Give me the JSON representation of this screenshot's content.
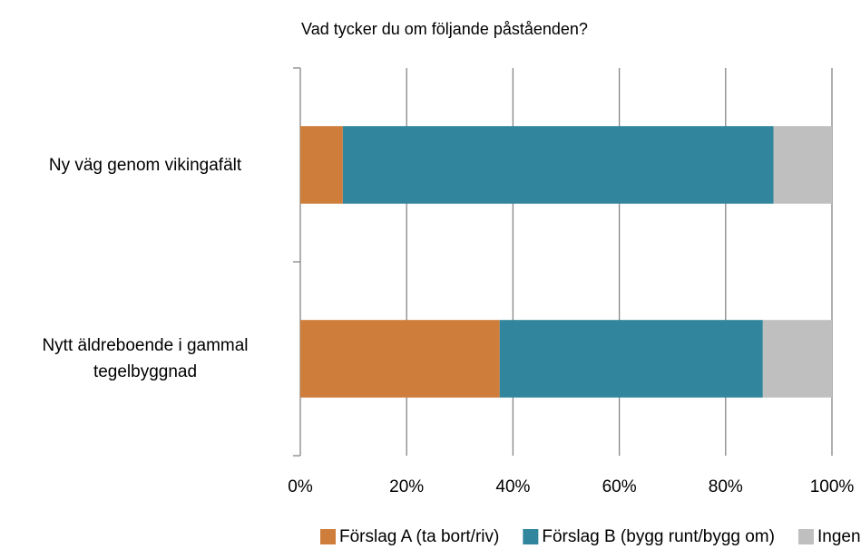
{
  "chart_data": {
    "type": "stacked_barh",
    "title": "Vad tycker du om följande påståenden?",
    "categories": [
      "Ny väg genom vikingafält",
      "Nytt äldreboende i gammal tegelbyggnad"
    ],
    "series": [
      {
        "name": "Förslag A (ta bort/riv)",
        "color": "#cf7d3a",
        "values": [
          8,
          37.5
        ]
      },
      {
        "name": "Förslag B (bygg runt/bygg om)",
        "color": "#31859c",
        "values": [
          81,
          49.5
        ]
      },
      {
        "name": "Ingen åsikt",
        "color": "#bfbfbf",
        "values": [
          11,
          13
        ]
      }
    ],
    "xlim": [
      0,
      100
    ],
    "xticks": [
      {
        "value": 0,
        "label": "0%"
      },
      {
        "value": 20,
        "label": "20%"
      },
      {
        "value": 40,
        "label": "40%"
      },
      {
        "value": 60,
        "label": "60%"
      },
      {
        "value": 80,
        "label": "80%"
      },
      {
        "value": 100,
        "label": "100%"
      }
    ],
    "grid": true,
    "legend": "bottom"
  }
}
